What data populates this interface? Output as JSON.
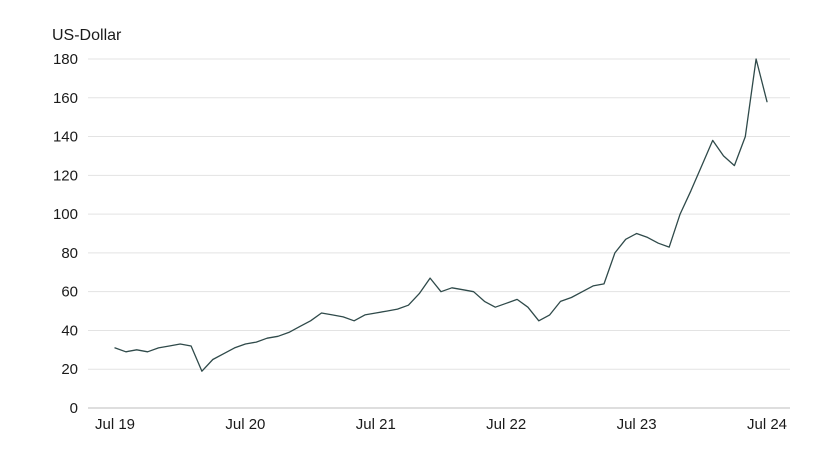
{
  "chart_data": {
    "type": "line",
    "ylabel": "US-Dollar",
    "ylim": [
      0,
      180
    ],
    "yticks": [
      0,
      20,
      40,
      60,
      80,
      100,
      120,
      140,
      160,
      180
    ],
    "xticks": [
      "Jul 19",
      "Jul 20",
      "Jul 21",
      "Jul 22",
      "Jul 23",
      "Jul 24"
    ],
    "x_start": "2019-07",
    "x_end": "2024-07",
    "grid": true,
    "line_color": "#2f4a4a",
    "series": [
      {
        "points": [
          [
            "2019-07",
            31
          ],
          [
            "2019-08",
            29
          ],
          [
            "2019-09",
            30
          ],
          [
            "2019-10",
            29
          ],
          [
            "2019-11",
            31
          ],
          [
            "2019-12",
            32
          ],
          [
            "2020-01",
            33
          ],
          [
            "2020-02",
            32
          ],
          [
            "2020-03",
            19
          ],
          [
            "2020-04",
            25
          ],
          [
            "2020-05",
            28
          ],
          [
            "2020-06",
            31
          ],
          [
            "2020-07",
            33
          ],
          [
            "2020-08",
            34
          ],
          [
            "2020-09",
            36
          ],
          [
            "2020-10",
            37
          ],
          [
            "2020-11",
            39
          ],
          [
            "2020-12",
            42
          ],
          [
            "2021-01",
            45
          ],
          [
            "2021-02",
            49
          ],
          [
            "2021-03",
            48
          ],
          [
            "2021-04",
            47
          ],
          [
            "2021-05",
            45
          ],
          [
            "2021-06",
            48
          ],
          [
            "2021-07",
            49
          ],
          [
            "2021-08",
            50
          ],
          [
            "2021-09",
            51
          ],
          [
            "2021-10",
            53
          ],
          [
            "2021-11",
            59
          ],
          [
            "2021-12",
            67
          ],
          [
            "2022-01",
            60
          ],
          [
            "2022-02",
            62
          ],
          [
            "2022-03",
            61
          ],
          [
            "2022-04",
            60
          ],
          [
            "2022-05",
            55
          ],
          [
            "2022-06",
            52
          ],
          [
            "2022-07",
            54
          ],
          [
            "2022-08",
            56
          ],
          [
            "2022-09",
            52
          ],
          [
            "2022-10",
            45
          ],
          [
            "2022-11",
            48
          ],
          [
            "2022-12",
            55
          ],
          [
            "2023-01",
            57
          ],
          [
            "2023-02",
            60
          ],
          [
            "2023-03",
            63
          ],
          [
            "2023-04",
            64
          ],
          [
            "2023-05",
            80
          ],
          [
            "2023-06",
            87
          ],
          [
            "2023-07",
            90
          ],
          [
            "2023-08",
            88
          ],
          [
            "2023-09",
            85
          ],
          [
            "2023-10",
            83
          ],
          [
            "2023-11",
            100
          ],
          [
            "2023-12",
            112
          ],
          [
            "2024-01",
            125
          ],
          [
            "2024-02",
            138
          ],
          [
            "2024-03",
            130
          ],
          [
            "2024-04",
            125
          ],
          [
            "2024-05",
            140
          ],
          [
            "2024-06",
            180
          ],
          [
            "2024-07",
            158
          ]
        ]
      }
    ]
  }
}
